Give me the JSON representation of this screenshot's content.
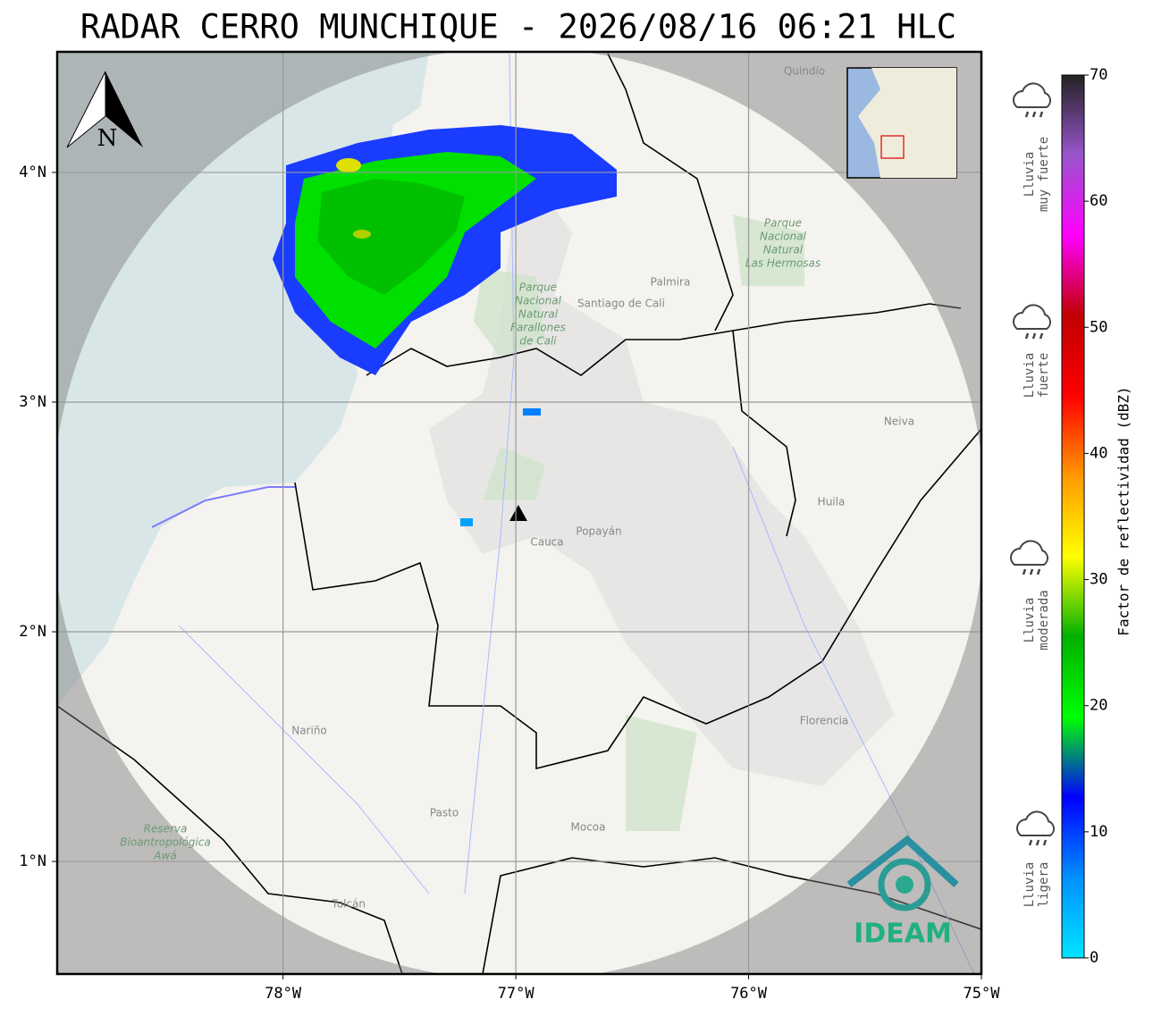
{
  "title": "RADAR CERRO MUNCHIQUE - 2026/08/16 06:21 HLC",
  "map": {
    "xlim": [
      -78.97,
      -75.0
    ],
    "ylim": [
      0.51,
      4.525
    ],
    "xticks": [
      {
        "value": -78,
        "label": "78°W"
      },
      {
        "value": -77,
        "label": "77°W"
      },
      {
        "value": -76,
        "label": "76°W"
      },
      {
        "value": -75,
        "label": "75°W"
      }
    ],
    "yticks": [
      {
        "value": 1,
        "label": "1°N"
      },
      {
        "value": 2,
        "label": "2°N"
      },
      {
        "value": 3,
        "label": "3°N"
      },
      {
        "value": 4,
        "label": "4°N"
      }
    ],
    "north": "N",
    "places": [
      "Santiago de Cali",
      "Palmira",
      "Popayán",
      "Cauca",
      "Pasto",
      "Nariño",
      "Huila",
      "Neiva",
      "Florencia",
      "Mocoa",
      "Tulcán",
      "Quindío"
    ],
    "parks": [
      [
        "Parque",
        "Nacional",
        "Natural",
        "Farallones",
        "de Cali"
      ],
      [
        "Parque",
        "Nacional",
        "Natural",
        "Las Hermosas"
      ],
      [
        "Reserva",
        "Bioantropológica",
        "Awá"
      ]
    ],
    "logo": "IDEAM"
  },
  "colorbar": {
    "lim": [
      0,
      70
    ],
    "ticks": [
      0,
      10,
      20,
      30,
      40,
      50,
      60,
      70
    ],
    "label": "Factor de reflectividad (dBZ)",
    "colors": [
      "#00e5ff",
      "#0090ff",
      "#0000ff",
      "#00ff00",
      "#00b000",
      "#ffff00",
      "#ff9900",
      "#ff0000",
      "#c00000",
      "#ff00ff",
      "#9955cc",
      "#222222"
    ]
  },
  "rain_levels": [
    [
      "Lluvia",
      "muy fuerte"
    ],
    [
      "Lluvia",
      "fuerte"
    ],
    [
      "Lluvia",
      "moderada"
    ],
    [
      "Lluvia",
      "ligera"
    ]
  ]
}
